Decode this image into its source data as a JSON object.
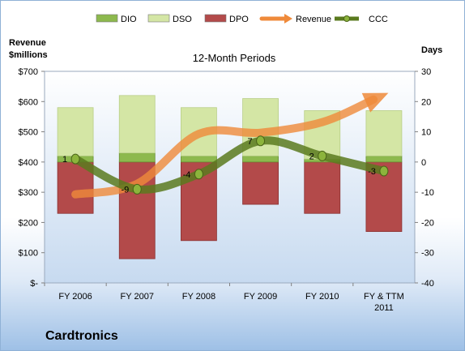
{
  "chart_data": {
    "type": "bar",
    "title": "12-Month Periods",
    "ylabel_left": "Revenue $millions",
    "ylabel_right": "Days",
    "categories": [
      "FY 2006",
      "FY 2007",
      "FY 2008",
      "FY 2009",
      "FY 2010",
      "FY & TTM 2011"
    ],
    "y_left": {
      "min": 0,
      "max": 700,
      "step": 100,
      "tick_labels": [
        "$-",
        "$100",
        "$200",
        "$300",
        "$400",
        "$500",
        "$600",
        "$700"
      ]
    },
    "y_right": {
      "min": -40,
      "max": 30,
      "step": 10,
      "tick_labels": [
        "-40",
        "-30",
        "-20",
        "-10",
        "0",
        "10",
        "20",
        "30"
      ]
    },
    "legend": [
      "DIO",
      "DSO",
      "DPO",
      "Revenue",
      "CCC"
    ],
    "legend_position": "top",
    "series": [
      {
        "name": "DIO",
        "kind": "stacked-bar",
        "axis": "right",
        "values": [
          2,
          3,
          2,
          2,
          1,
          2
        ]
      },
      {
        "name": "DSO",
        "kind": "stacked-bar",
        "axis": "right",
        "values": [
          16,
          19,
          16,
          19,
          16,
          15
        ]
      },
      {
        "name": "DPO",
        "kind": "bar-below-zero",
        "axis": "right",
        "values": [
          17,
          32,
          26,
          14,
          17,
          23
        ]
      },
      {
        "name": "Revenue",
        "kind": "line-arrow",
        "axis": "left",
        "values": [
          293,
          328,
          493,
          497,
          532,
          622
        ]
      },
      {
        "name": "CCC",
        "kind": "line",
        "axis": "right",
        "values": [
          1,
          -9,
          -4,
          7,
          2,
          -3
        ],
        "labels": [
          "1",
          "-9",
          "-4",
          "7",
          "2",
          "-3"
        ]
      }
    ],
    "colors": {
      "DIO": "#8db94e",
      "DSO": "#d4e6a5",
      "DPO": "#b34a4a",
      "Revenue": "#ef8a3a",
      "CCC": "#5a7a1e",
      "grid": "#ffffff"
    },
    "grid": false
  },
  "company": "Cardtronics"
}
